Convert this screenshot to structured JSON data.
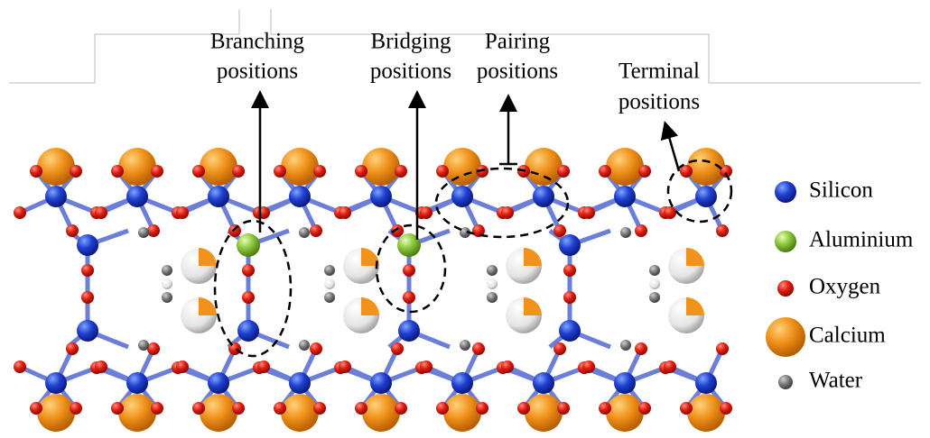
{
  "annotations": [
    {
      "lines": [
        "Branching",
        "positions"
      ]
    },
    {
      "lines": [
        "Bridging",
        "positions"
      ]
    },
    {
      "lines": [
        "Pairing",
        "positions"
      ]
    },
    {
      "lines": [
        "Terminal",
        "positions"
      ]
    }
  ],
  "legend": [
    {
      "label": "Silicon"
    },
    {
      "label": "Aluminium"
    },
    {
      "label": "Oxygen"
    },
    {
      "label": "Calcium"
    },
    {
      "label": "Water"
    }
  ]
}
